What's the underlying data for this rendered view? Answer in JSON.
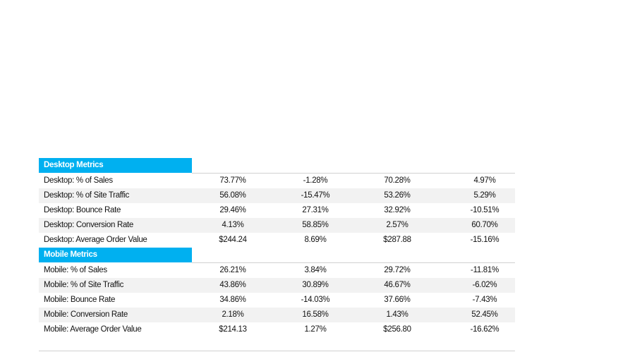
{
  "sections": [
    {
      "title": "Desktop Metrics",
      "rows": [
        [
          "Desktop: % of Sales",
          "73.77%",
          "-1.28%",
          "70.28%",
          "4.97%"
        ],
        [
          "Desktop: % of Site Traffic",
          "56.08%",
          "-15.47%",
          "53.26%",
          "5.29%"
        ],
        [
          "Desktop: Bounce Rate",
          "29.46%",
          "27.31%",
          "32.92%",
          "-10.51%"
        ],
        [
          "Desktop: Conversion Rate",
          "4.13%",
          "58.85%",
          "2.57%",
          "60.70%"
        ],
        [
          "Desktop: Average Order Value",
          "$244.24",
          "8.69%",
          "$287.88",
          "-15.16%"
        ]
      ]
    },
    {
      "title": "Mobile Metrics",
      "rows": [
        [
          "Mobile: % of Sales",
          "26.21%",
          "3.84%",
          "29.72%",
          "-11.81%"
        ],
        [
          "Mobile: % of Site Traffic",
          "43.86%",
          "30.89%",
          "46.67%",
          "-6.02%"
        ],
        [
          "Mobile: Bounce Rate",
          "34.86%",
          "-14.03%",
          "37.66%",
          "-7.43%"
        ],
        [
          "Mobile: Conversion Rate",
          "2.18%",
          "16.58%",
          "1.43%",
          "52.45%"
        ],
        [
          "Mobile: Average Order Value",
          "$214.13",
          "1.27%",
          "$256.80",
          "-16.62%"
        ]
      ]
    }
  ]
}
